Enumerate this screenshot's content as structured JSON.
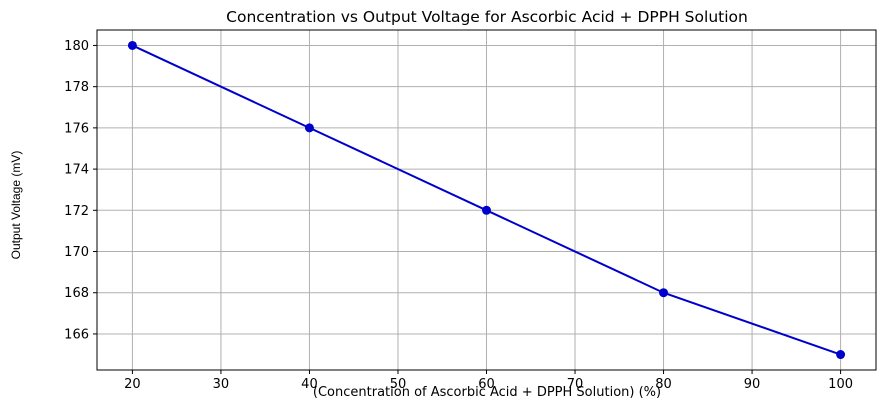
{
  "chart_data": {
    "type": "line",
    "title": "Concentration vs Output Voltage for Ascorbic Acid + DPPH Solution",
    "xlabel": "(Concentration of  Ascorbic Acid + DPPH Solution) (%)",
    "ylabel": "Output Voltage (mV)",
    "x": [
      20,
      40,
      60,
      80,
      100
    ],
    "series": [
      {
        "values": [
          180,
          176,
          172,
          168,
          165
        ],
        "color": "#0000cc",
        "marker": "circle"
      }
    ],
    "xlim": [
      16,
      104
    ],
    "ylim": [
      164.25,
      180.75
    ],
    "xticks": [
      20,
      30,
      40,
      50,
      60,
      70,
      80,
      90,
      100
    ],
    "yticks": [
      166,
      168,
      170,
      172,
      174,
      176,
      178,
      180
    ],
    "grid": true,
    "legend": "none"
  }
}
